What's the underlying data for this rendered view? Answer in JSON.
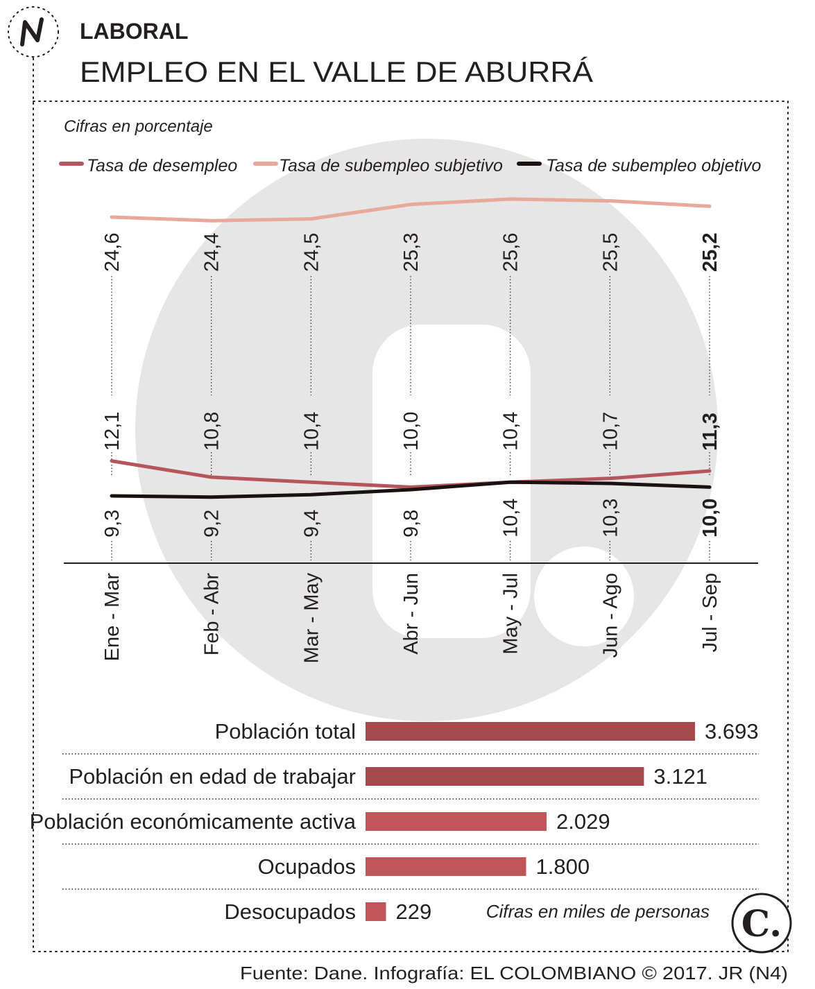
{
  "header": {
    "section": "LABORAL",
    "title": "EMPLEO EN EL VALLE DE ABURRÁ",
    "logo_icon": "n-section-icon"
  },
  "colors": {
    "desempleo": "#b5565c",
    "subjetivo": "#e8a89a",
    "objetivo": "#1a1210",
    "bar_dark": "#a6494f",
    "bar_light": "#c0555a",
    "watermark": "#e6e6e6",
    "text": "#231f20"
  },
  "chart_data": [
    {
      "type": "line",
      "note": "Cifras en porcentaje",
      "categories": [
        "Ene - Mar",
        "Feb - Abr",
        "Mar - May",
        "Abr - Jun",
        "May - Jul",
        "Jun - Ago",
        "Jul - Sep"
      ],
      "series": [
        {
          "name": "Tasa de desempleo",
          "color_key": "desempleo",
          "values": [
            12.1,
            10.8,
            10.4,
            10.0,
            10.4,
            10.7,
            11.3
          ],
          "labels": [
            "12,1",
            "10,8",
            "10,4",
            "10,0",
            "10,4",
            "10,7",
            "11,3"
          ]
        },
        {
          "name": "Tasa de subempleo subjetivo",
          "color_key": "subjetivo",
          "values": [
            24.6,
            24.4,
            24.5,
            25.3,
            25.6,
            25.5,
            25.2
          ],
          "labels": [
            "24,6",
            "24,4",
            "24,5",
            "25,3",
            "25,6",
            "25,5",
            "25,2"
          ]
        },
        {
          "name": "Tasa de subempleo objetivo",
          "color_key": "objetivo",
          "values": [
            9.3,
            9.2,
            9.4,
            9.8,
            10.4,
            10.3,
            10.0
          ],
          "labels": [
            "9,3",
            "9,2",
            "9,4",
            "9,8",
            "10,4",
            "10,3",
            "10,0"
          ]
        }
      ]
    },
    {
      "type": "bar",
      "orientation": "horizontal",
      "note": "Cifras en miles de personas",
      "categories": [
        "Población total",
        "Población en edad de trabajar",
        "Población económicamente activa",
        "Ocupados",
        "Desocupados"
      ],
      "values": [
        3693,
        3121,
        2029,
        1800,
        229
      ],
      "labels": [
        "3.693",
        "3.121",
        "2.029",
        "1.800",
        "229"
      ]
    }
  ],
  "footer": {
    "source": "Fuente: Dane. Infografía: EL COLOMBIANO © 2017. JR (N4)",
    "brand_logo": "C."
  }
}
